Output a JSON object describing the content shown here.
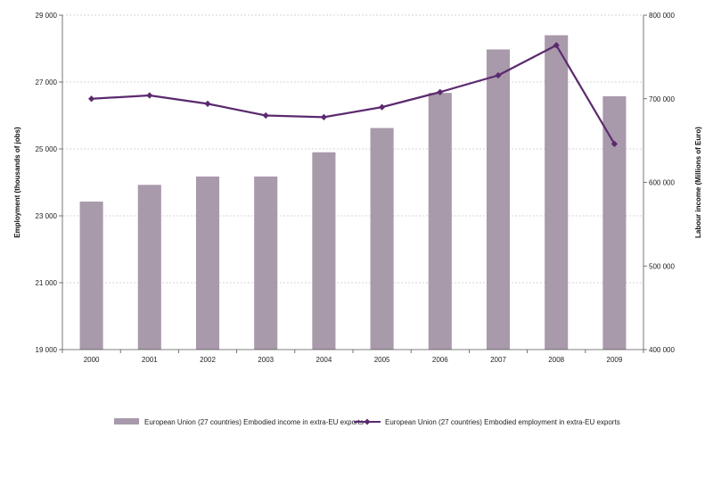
{
  "chart_data": {
    "type": "bar",
    "title": "",
    "categories": [
      "2000",
      "2001",
      "2002",
      "2003",
      "2004",
      "2005",
      "2006",
      "2007",
      "2008",
      "2009"
    ],
    "series": [
      {
        "name": "European Union (27 countries) Embodied income in extra-EU exports",
        "type": "bar",
        "axis": "right",
        "values": [
          577000,
          597000,
          607000,
          607000,
          636000,
          665000,
          707000,
          759000,
          776000,
          703000
        ],
        "color": "#a899ab"
      },
      {
        "name": "European Union (27 countries) Embodied employment in extra-EU exports",
        "type": "line",
        "axis": "left",
        "values": [
          26500,
          26600,
          26350,
          26000,
          25950,
          26250,
          26700,
          27200,
          28100,
          25150
        ],
        "color": "#5b2a6e"
      }
    ],
    "ylabel_left": "Employment (thousands of jobs)",
    "ylabel_right": "Labour income (Millions of Euro)",
    "ylim_left": [
      19000,
      29000
    ],
    "ylim_right": [
      400000,
      800000
    ],
    "yticks_left": [
      "19 000",
      "21 000",
      "23 000",
      "25 000",
      "27 000",
      "29 000"
    ],
    "yticks_right": [
      "400 000",
      "500 000",
      "600 000",
      "700 000",
      "800 000"
    ],
    "grid": true,
    "legend_position": "bottom"
  }
}
